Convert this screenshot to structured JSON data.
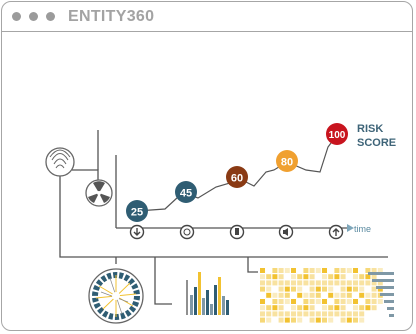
{
  "window": {
    "title": "ENTITY360"
  },
  "timeline": {
    "axis_label": "time",
    "scores": [
      {
        "value": "25",
        "color": "#2f5d73"
      },
      {
        "value": "45",
        "color": "#2f5d73"
      },
      {
        "value": "60",
        "color": "#8a3a14"
      },
      {
        "value": "80",
        "color": "#f0a030"
      },
      {
        "value": "100",
        "color": "#c8141e"
      }
    ],
    "risk_line1": "RISK",
    "risk_line2": "SCORE",
    "event_icons": [
      "download-icon",
      "fingerprint-icon",
      "usb-icon",
      "speaker-icon",
      "upload-icon"
    ]
  },
  "sidebar": {
    "icons": [
      "fingerprint-icon",
      "radiation-icon"
    ]
  },
  "colors": {
    "line": "#555555",
    "dark_teal": "#2f5d73",
    "brown": "#8a3a14",
    "orange": "#f0a030",
    "red": "#c8141e",
    "yellow": "#f2c230",
    "gray_blue": "#7f98a6"
  }
}
